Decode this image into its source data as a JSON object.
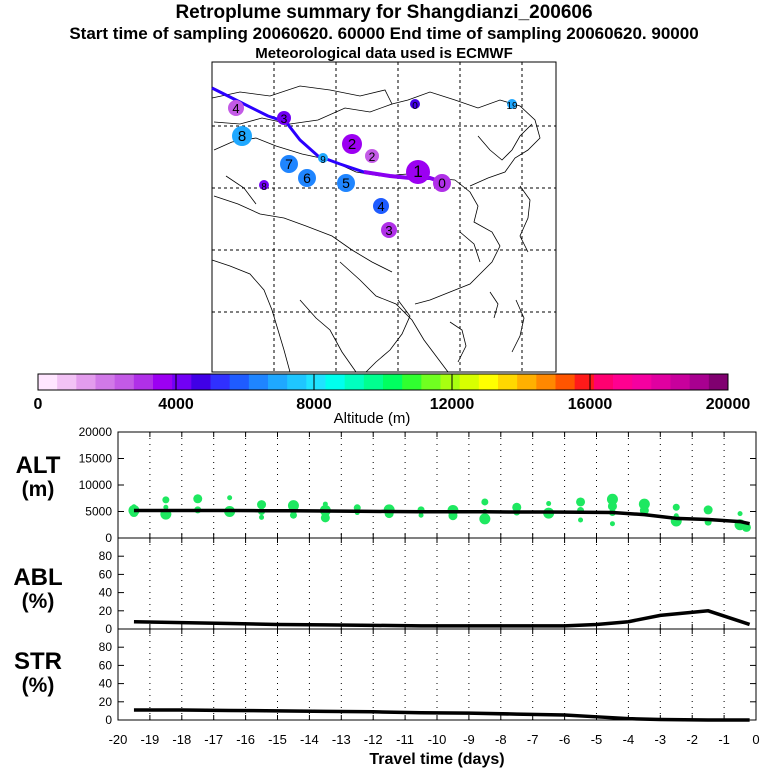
{
  "header": {
    "title": "Retroplume summary for Shangdianzi_200606",
    "sampling": "Start time of sampling 20060620. 60000     End time of sampling 20060620. 90000",
    "met": "Meteorological data used is ECMWF"
  },
  "colorbar": {
    "tick_labels": [
      "0",
      "4000",
      "8000",
      "12000",
      "16000",
      "20000"
    ],
    "label": "Altitude  (m)",
    "colors": [
      "#ffe6ff",
      "#f2c2f5",
      "#e39ced",
      "#d179e8",
      "#c35ae6",
      "#b030e8",
      "#9c00f2",
      "#7200f5",
      "#4000e6",
      "#3030ff",
      "#1f5cff",
      "#1f85ff",
      "#1fa8ff",
      "#1fc6ff",
      "#1fe3ff",
      "#00ffee",
      "#00ffbf",
      "#00ff90",
      "#00ff60",
      "#30ff30",
      "#70ff20",
      "#a8ff10",
      "#d8ff00",
      "#ffff00",
      "#ffd800",
      "#ffb000",
      "#ff8800",
      "#ff5500",
      "#ff1a1a",
      "#ff0070",
      "#ff0090",
      "#f500a0",
      "#e000a0",
      "#c8009c",
      "#a80090",
      "#800070"
    ]
  },
  "map": {
    "points": [
      {
        "label": "0",
        "color": "#b030e8"
      },
      {
        "label": "1",
        "color": "#9c00f2"
      },
      {
        "label": "2",
        "color": "#9c00f2"
      },
      {
        "label": "3",
        "color": "#7200f5"
      },
      {
        "label": "4",
        "color": "#1f5cff"
      },
      {
        "label": "5",
        "color": "#1f85ff"
      },
      {
        "label": "6",
        "color": "#1f85ff"
      },
      {
        "label": "7",
        "color": "#1f85ff"
      },
      {
        "label": "8",
        "color": "#1fa8ff"
      },
      {
        "label": "9",
        "color": "#1fa8ff"
      },
      {
        "label": "4",
        "color": "#c35ae6"
      },
      {
        "label": "2",
        "color": "#c35ae6"
      },
      {
        "label": "3",
        "color": "#b030e8"
      },
      {
        "label": "8",
        "color": "#7200f5"
      },
      {
        "label": "0",
        "color": "#4000e6"
      },
      {
        "label": "19",
        "color": "#1fa8ff"
      }
    ]
  },
  "panels": {
    "alt": {
      "label_line1": "ALT",
      "label_line2": "(m)",
      "ticks": [
        "20000",
        "15000",
        "10000",
        "5000",
        "0"
      ]
    },
    "abl": {
      "label_line1": "ABL",
      "label_line2": "(%)",
      "ticks": [
        "80",
        "60",
        "40",
        "20",
        "0"
      ]
    },
    "str": {
      "label_line1": "STR",
      "label_line2": "(%)",
      "ticks": [
        "80",
        "60",
        "40",
        "20",
        "0"
      ]
    }
  },
  "chart_data": [
    {
      "type": "line",
      "title": "ALT (m)",
      "xlabel": "Travel time (days)",
      "ylabel": "ALT (m)",
      "xlim": [
        -20,
        0
      ],
      "ylim": [
        0,
        20000
      ],
      "x": [
        -19.5,
        -18.5,
        -17.5,
        -16.5,
        -15.5,
        -14.5,
        -13.5,
        -12.5,
        -11.5,
        -10.5,
        -9.5,
        -8.5,
        -7.5,
        -6.5,
        -5.5,
        -4.5,
        -3.5,
        -2.5,
        -1.5,
        -0.5,
        -0.2
      ],
      "values": [
        5200,
        5200,
        5200,
        5200,
        5150,
        5150,
        5100,
        5050,
        5000,
        4950,
        4950,
        4950,
        4900,
        4900,
        4850,
        4800,
        4400,
        3700,
        3500,
        3100,
        2700
      ],
      "scatter_x": [
        -19.5,
        -19.5,
        -19.5,
        -18.5,
        -18.5,
        -18.5,
        -17.5,
        -17.5,
        -16.5,
        -16.5,
        -15.5,
        -15.5,
        -15.5,
        -14.5,
        -14.5,
        -14.5,
        -13.5,
        -13.5,
        -13.5,
        -12.5,
        -12.5,
        -11.5,
        -11.5,
        -10.5,
        -10.5,
        -9.5,
        -9.5,
        -8.5,
        -8.5,
        -8.5,
        -7.5,
        -7.5,
        -6.5,
        -6.5,
        -5.5,
        -5.5,
        -5.5,
        -4.5,
        -4.5,
        -4.5,
        -4.5,
        -3.5,
        -3.5,
        -2.5,
        -2.5,
        -2.5,
        -1.5,
        -1.5,
        -0.5,
        -0.5,
        -0.3
      ],
      "scatter_y": [
        5900,
        5200,
        4800,
        7200,
        5800,
        4500,
        7400,
        5300,
        7600,
        5000,
        6300,
        5000,
        3900,
        6100,
        5400,
        4300,
        6400,
        5200,
        3800,
        5700,
        4800,
        5300,
        4600,
        5300,
        4300,
        5200,
        4200,
        6800,
        5000,
        3600,
        5800,
        4900,
        6500,
        4700,
        6800,
        5200,
        3400,
        7300,
        6000,
        4800,
        2700,
        6400,
        5200,
        5800,
        4200,
        3200,
        5300,
        3000,
        4600,
        2500,
        2000
      ]
    },
    {
      "type": "line",
      "title": "ABL (%)",
      "xlabel": "Travel time (days)",
      "ylabel": "ABL (%)",
      "xlim": [
        -20,
        0
      ],
      "ylim": [
        0,
        100
      ],
      "x": [
        -19.5,
        -18,
        -16.5,
        -15,
        -13.5,
        -12,
        -10.5,
        -9,
        -7.5,
        -6,
        -5,
        -4,
        -3,
        -1.5,
        -0.2
      ],
      "values": [
        8,
        7,
        6,
        5,
        4.5,
        4,
        3.5,
        3.5,
        3.5,
        3.5,
        5,
        8,
        15,
        20,
        5
      ]
    },
    {
      "type": "line",
      "title": "STR (%)",
      "xlabel": "Travel time (days)",
      "ylabel": "STR (%)",
      "xlim": [
        -20,
        0
      ],
      "ylim": [
        0,
        100
      ],
      "x": [
        -19.5,
        -18,
        -16.5,
        -15,
        -13.5,
        -12,
        -10.5,
        -9,
        -7.5,
        -6,
        -5,
        -4,
        -3,
        -1.5,
        -0.2
      ],
      "values": [
        11,
        11,
        10.5,
        10,
        9.5,
        9,
        8,
        7.5,
        6.5,
        5.5,
        3.5,
        1.5,
        0.5,
        0,
        0
      ],
      "x_tick_labels": [
        "-20",
        "-19",
        "-18",
        "-17",
        "-16",
        "-15",
        "-14",
        "-13",
        "-12",
        "-11",
        "-10",
        "-9",
        "-8",
        "-7",
        "-6",
        "-5",
        "-4",
        "-3",
        "-2",
        "-1",
        "0"
      ]
    }
  ]
}
